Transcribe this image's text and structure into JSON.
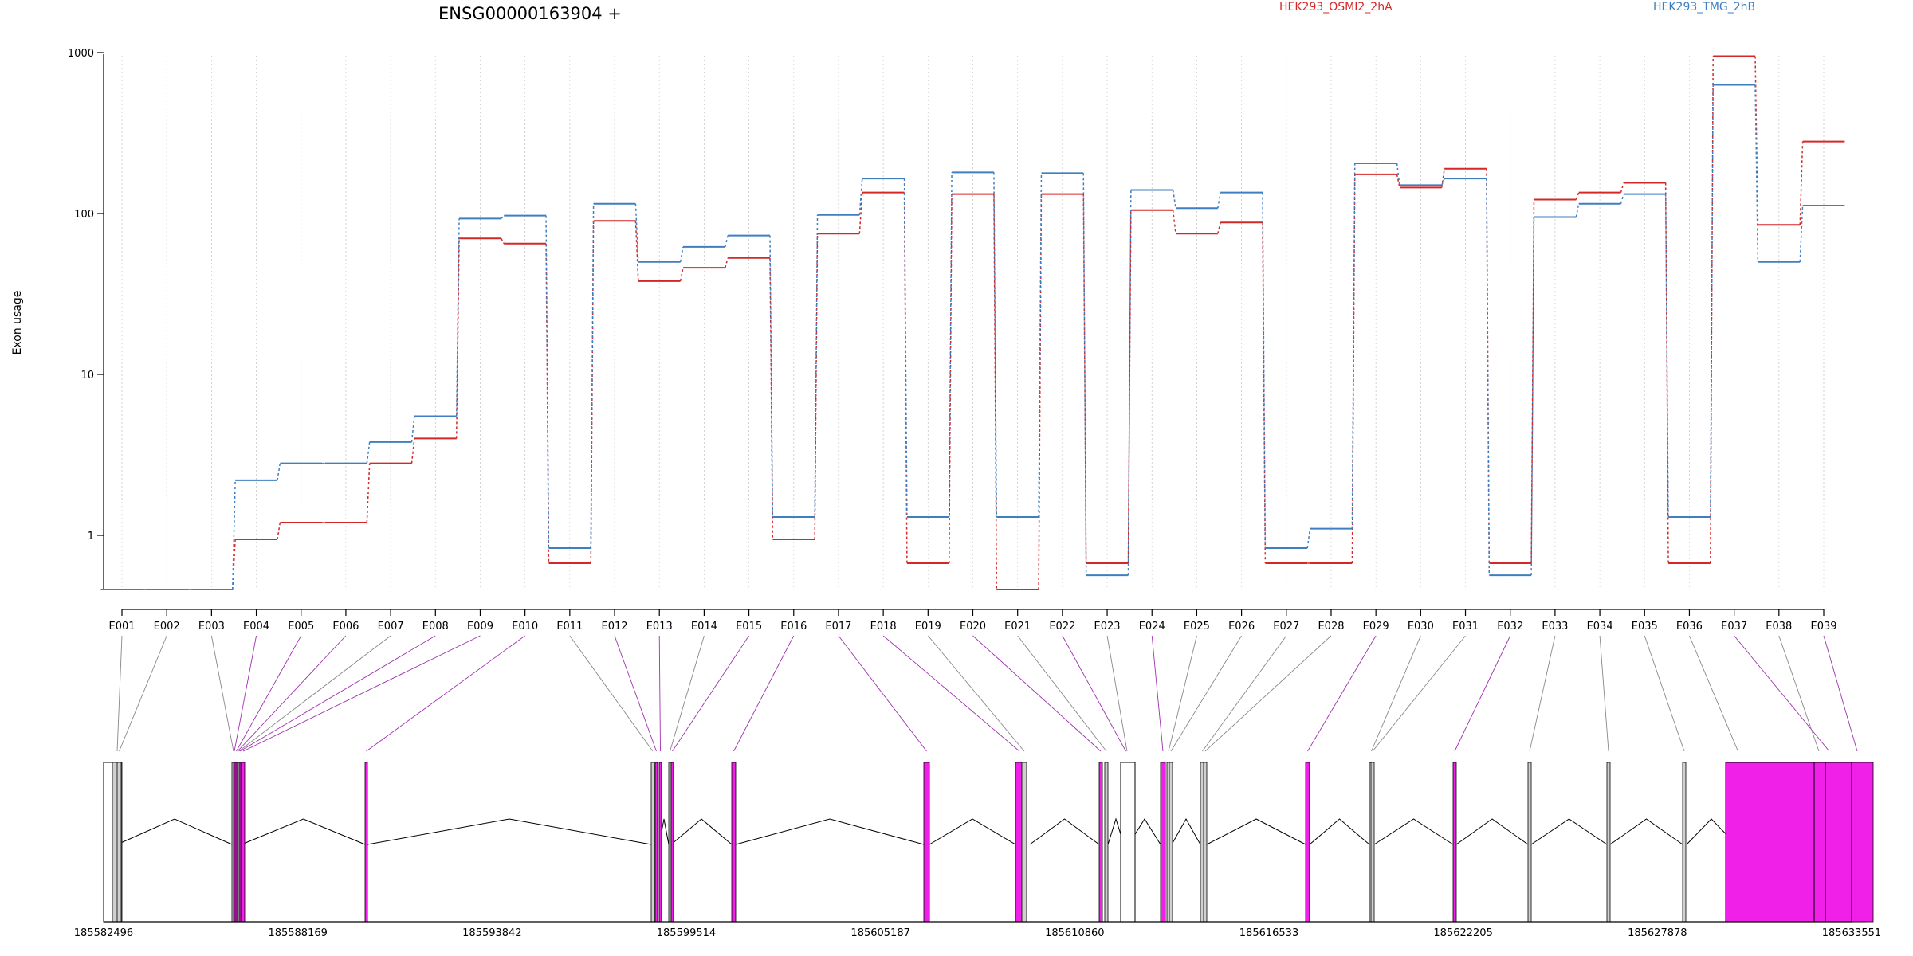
{
  "chart_data": {
    "type": "line",
    "title": "ENSG00000163904 +",
    "ylabel": "Exon usage",
    "yscale": "log",
    "ylim": [
      0.5,
      1000
    ],
    "yticks": [
      "1",
      "10",
      "100",
      "1000"
    ],
    "legend_placement": "top",
    "grid": "vertical dotted lines at each exon",
    "categories": [
      "E001",
      "E002",
      "E003",
      "E004",
      "E005",
      "E006",
      "E007",
      "E008",
      "E009",
      "E010",
      "E011",
      "E012",
      "E013",
      "E014",
      "E015",
      "E016",
      "E017",
      "E018",
      "E019",
      "E020",
      "E021",
      "E022",
      "E023",
      "E024",
      "E025",
      "E026",
      "E027",
      "E028",
      "E029",
      "E030",
      "E031",
      "E032",
      "E033",
      "E034",
      "E035",
      "E036",
      "E037",
      "E038",
      "E039"
    ],
    "series": [
      {
        "name": "HEK293_OSMI2_2hA",
        "color": "#d62728",
        "values": [
          0.5,
          0.5,
          0.5,
          0.95,
          1.2,
          1.2,
          2.8,
          4.0,
          70,
          65,
          0.7,
          90,
          38,
          46,
          53,
          0.95,
          75,
          135,
          0.7,
          132,
          0.5,
          132,
          0.7,
          105,
          75,
          88,
          0.7,
          0.7,
          175,
          145,
          190,
          0.7,
          122,
          135,
          155,
          0.7,
          950,
          85,
          280
        ]
      },
      {
        "name": "HEK293_TMG_2hB",
        "color": "#3f7fc0",
        "values": [
          0.5,
          0.5,
          0.5,
          2.2,
          2.8,
          2.8,
          3.8,
          5.5,
          93,
          97,
          0.85,
          115,
          50,
          62,
          73,
          1.3,
          98,
          165,
          1.3,
          180,
          1.3,
          178,
          0.6,
          140,
          108,
          135,
          0.85,
          1.1,
          205,
          150,
          165,
          0.6,
          95,
          115,
          132,
          1.3,
          630,
          50,
          112
        ]
      }
    ],
    "gene_model": {
      "coordinates": [
        "185582496",
        "185588169",
        "185593842",
        "185599514",
        "185605187",
        "185610860",
        "185616533",
        "185622205",
        "185627878",
        "185633551"
      ],
      "range": [
        185582496,
        185633551
      ],
      "feature_colors": {
        "significant": "#f020e8",
        "not_significant": "#d0d0d0",
        "intron": "#000000"
      }
    }
  }
}
